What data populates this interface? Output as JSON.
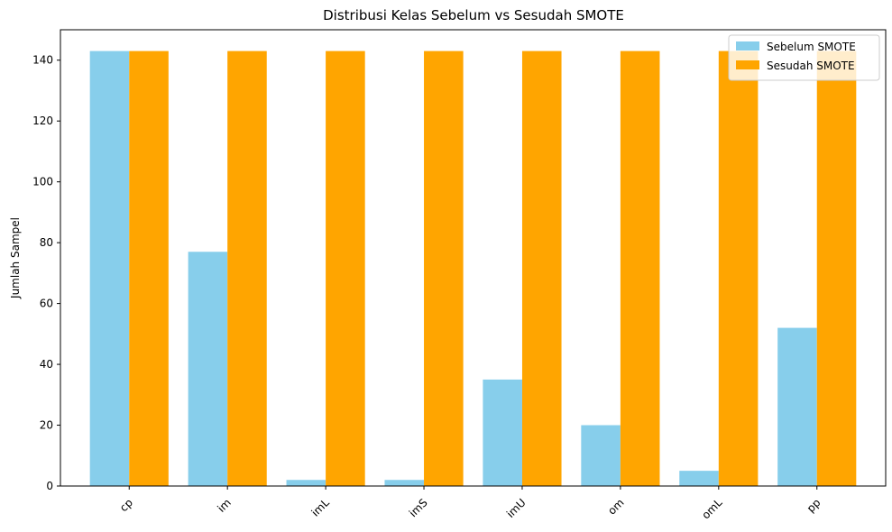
{
  "chart_data": {
    "type": "bar",
    "title": "Distribusi Kelas Sebelum vs Sesudah SMOTE",
    "xlabel": "",
    "ylabel": "Jumlah Sampel",
    "categories": [
      "cp",
      "im",
      "imL",
      "imS",
      "imU",
      "om",
      "omL",
      "pp"
    ],
    "series": [
      {
        "name": "Sebelum SMOTE",
        "color": "#87CEEB",
        "values": [
          143,
          77,
          2,
          2,
          35,
          20,
          5,
          52
        ]
      },
      {
        "name": "Sesudah SMOTE",
        "color": "#FFA500",
        "values": [
          143,
          143,
          143,
          143,
          143,
          143,
          143,
          143
        ]
      }
    ],
    "ylim": [
      0,
      150
    ],
    "yticks": [
      0,
      20,
      40,
      60,
      80,
      100,
      120,
      140
    ],
    "grid": false,
    "legend_position": "top-right",
    "xtick_rotation": 45
  }
}
